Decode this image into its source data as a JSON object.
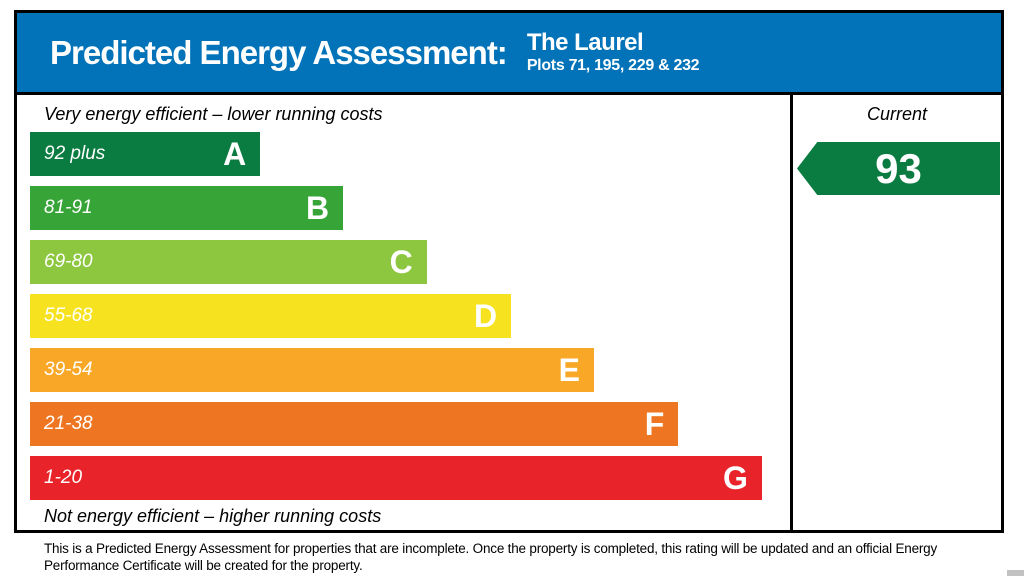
{
  "header": {
    "title": "Predicted Energy Assessment:",
    "property_name": "The Laurel",
    "plots": "Plots 71, 195, 229 & 232",
    "background_color": "#0273b8"
  },
  "chart_data": {
    "type": "bar",
    "title": "Predicted Energy Assessment",
    "top_caption": "Very energy efficient – lower running costs",
    "bottom_caption": "Not energy efficient – higher running costs",
    "current_column_header": "Current",
    "current_rating": {
      "value": "93",
      "band": "A",
      "color": "#0b7c41"
    },
    "bands": [
      {
        "letter": "A",
        "range": "92 plus",
        "color": "#0b7c41",
        "width_pct": 30.3
      },
      {
        "letter": "B",
        "range": "81-91",
        "color": "#37a437",
        "width_pct": 41.2
      },
      {
        "letter": "C",
        "range": "69-80",
        "color": "#8dc63f",
        "width_pct": 52.2
      },
      {
        "letter": "D",
        "range": "55-68",
        "color": "#f6e21f",
        "width_pct": 63.3
      },
      {
        "letter": "E",
        "range": "39-54",
        "color": "#f8a826",
        "width_pct": 74.2
      },
      {
        "letter": "F",
        "range": "21-38",
        "color": "#ee7623",
        "width_pct": 85.3
      },
      {
        "letter": "G",
        "range": "1-20",
        "color": "#e8232a",
        "width_pct": 96.3
      }
    ]
  },
  "footer": {
    "disclaimer": "This is a Predicted Energy Assessment for properties that are incomplete. Once the property is completed, this rating will be updated and an official Energy Performance Certificate will be created for the property."
  }
}
